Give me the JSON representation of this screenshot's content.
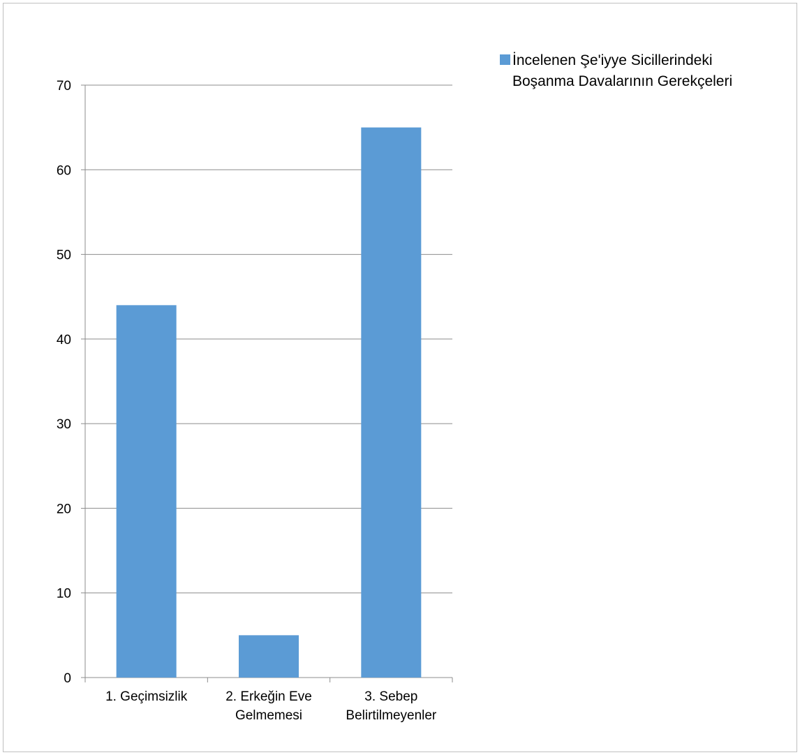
{
  "chart_data": {
    "type": "bar",
    "categories": [
      [
        "1. Geçimsizlik"
      ],
      [
        "2. Erkeğin Eve",
        "Gelmemesi"
      ],
      [
        "3. Sebep",
        "Belirtilmeyenler"
      ]
    ],
    "series": [
      {
        "name": "İncelenen Şe'iyye Sicillerindeki Boşanma Davalarının Gerekçeleri",
        "name_lines": [
          "İncelenen Şe'iyye Sicillerindeki",
          "Boşanma Davalarının Gerekçeleri"
        ],
        "values": [
          44,
          5,
          65
        ],
        "color": "#5b9bd5"
      }
    ],
    "ylim": [
      0,
      70
    ],
    "yticks": [
      0,
      10,
      20,
      30,
      40,
      50,
      60,
      70
    ],
    "grid": true,
    "legend_position": "top-right",
    "gridline_color": "#8c8c8c",
    "axis_color": "#8c8c8c"
  }
}
